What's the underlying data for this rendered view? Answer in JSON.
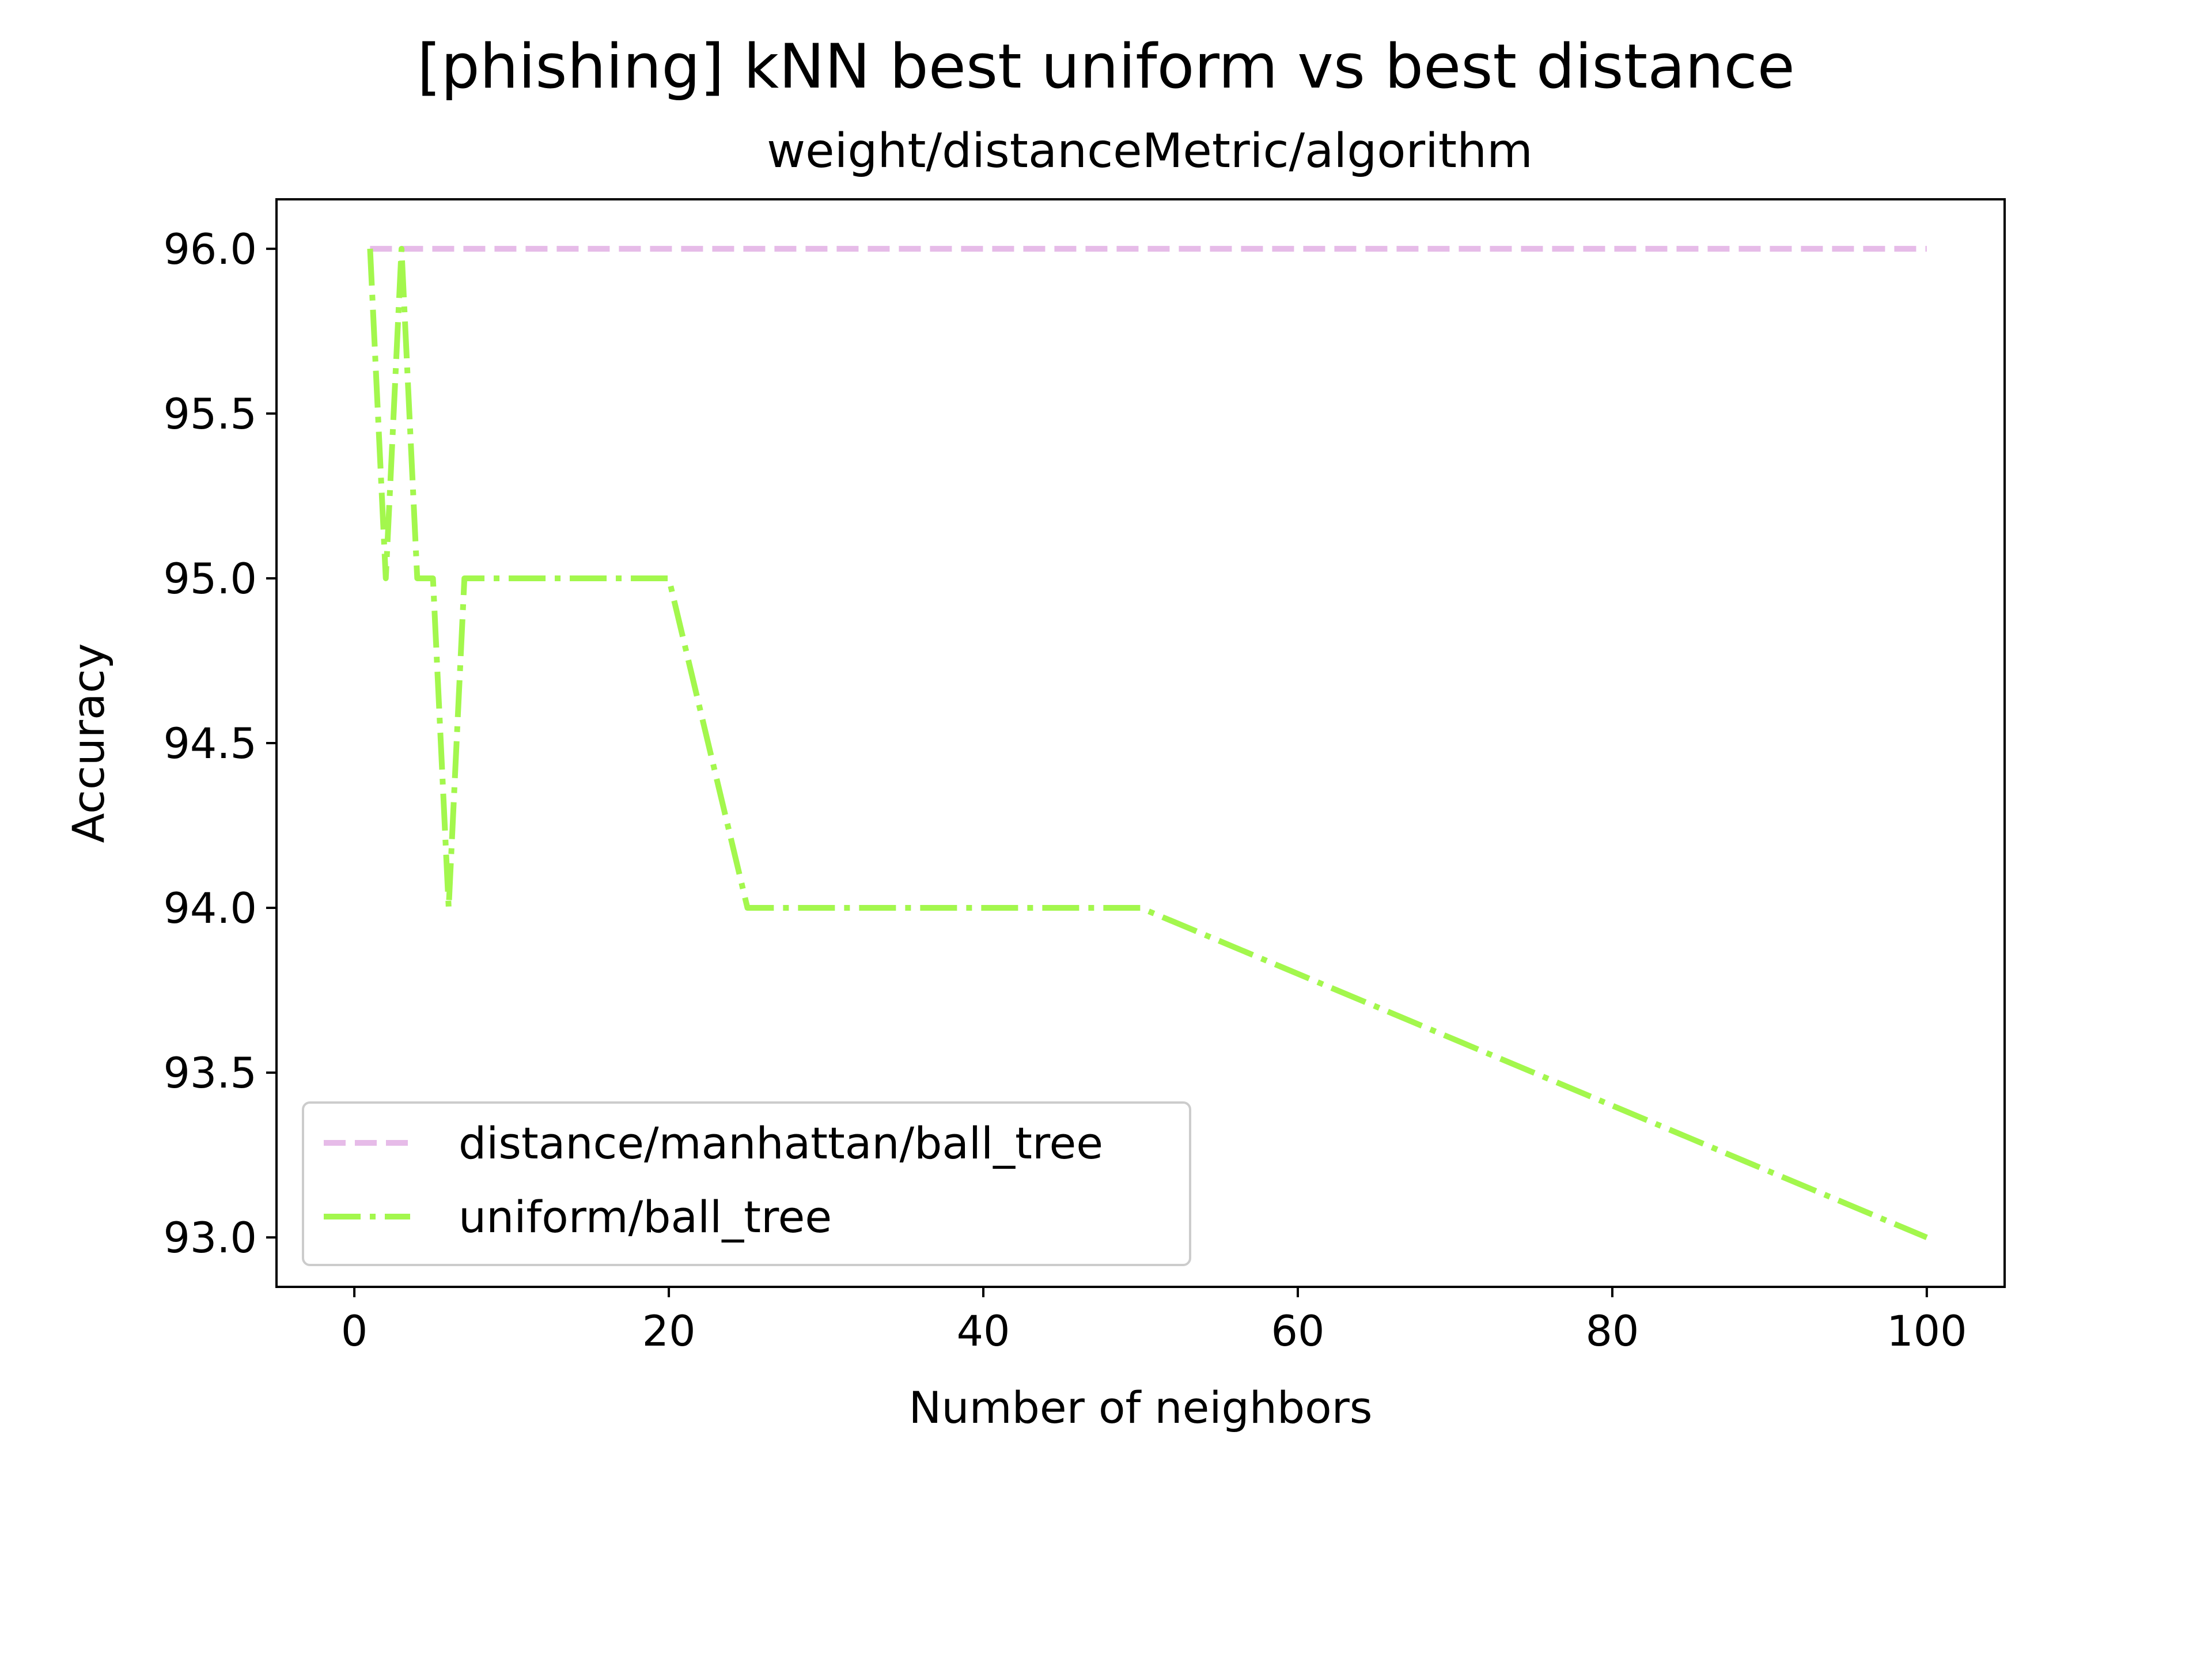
{
  "chart_data": {
    "type": "line",
    "title": "[phishing] kNN best uniform vs best distance",
    "subtitle": "weight/distanceMetric/algorithm",
    "xlabel": "Number of neighbors",
    "ylabel": "Accuracy",
    "xlim": [
      -4.95,
      104.95
    ],
    "ylim": [
      92.85,
      96.15
    ],
    "xticks": [
      0,
      20,
      40,
      60,
      80,
      100
    ],
    "yticks": [
      93.0,
      93.5,
      94.0,
      94.5,
      95.0,
      95.5,
      96.0
    ],
    "xtick_labels": [
      "0",
      "20",
      "40",
      "60",
      "80",
      "100"
    ],
    "ytick_labels": [
      "93.0",
      "93.5",
      "94.0",
      "94.5",
      "95.0",
      "95.5",
      "96.0"
    ],
    "grid": false,
    "legend_position": "lower-left",
    "series": [
      {
        "name": "distance/manhattan/ball_tree",
        "color": "#e6bbe8",
        "style": "dashed",
        "x": [
          1,
          2,
          3,
          4,
          5,
          6,
          7,
          8,
          9,
          10,
          15,
          20,
          25,
          30,
          35,
          40,
          45,
          50,
          100
        ],
        "y": [
          96,
          96,
          96,
          96,
          96,
          96,
          96,
          96,
          96,
          96,
          96,
          96,
          96,
          96,
          96,
          96,
          96,
          96,
          96
        ]
      },
      {
        "name": "uniform/ball_tree",
        "color": "#a3f74d",
        "style": "dashdot",
        "x": [
          1,
          2,
          3,
          4,
          5,
          6,
          7,
          8,
          9,
          10,
          15,
          20,
          25,
          30,
          35,
          40,
          45,
          50,
          100
        ],
        "y": [
          96,
          95,
          96,
          95,
          95,
          94,
          95,
          95,
          95,
          95,
          95,
          95,
          94,
          94,
          94,
          94,
          94,
          94,
          93
        ]
      }
    ]
  }
}
